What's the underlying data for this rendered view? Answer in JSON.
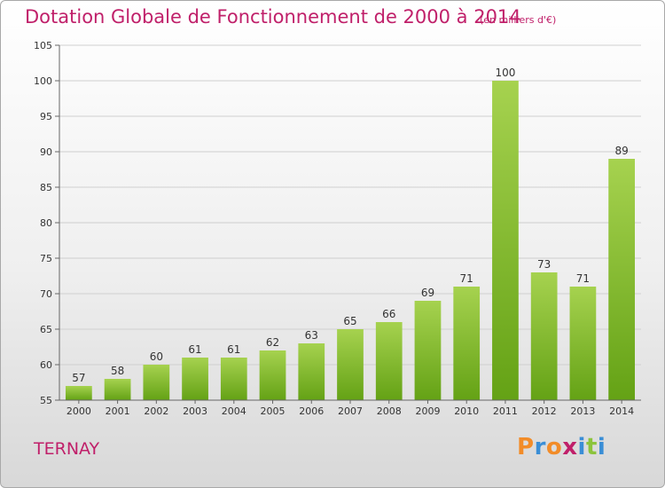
{
  "header": {
    "title": "Dotation Globale de Fonctionnement de 2000 à 2014",
    "unit": "(en milliers d'€)"
  },
  "footer": {
    "place": "TERNAY",
    "logo": "Proxiti"
  },
  "colors": {
    "title": "#c0206a",
    "bar_light": "#a6d24f",
    "bar_dark": "#64a215",
    "logo": [
      "#f28c28",
      "#3a8ed6",
      "#f28c28",
      "#c0206a",
      "#3a8ed6",
      "#8cc43c",
      "#3a8ed6"
    ]
  },
  "chart_data": {
    "type": "bar",
    "title": "Dotation Globale de Fonctionnement de 2000 à 2014",
    "subtitle": "(en milliers d'€)",
    "xlabel": "",
    "ylabel": "",
    "categories": [
      "2000",
      "2001",
      "2002",
      "2003",
      "2004",
      "2005",
      "2006",
      "2007",
      "2008",
      "2009",
      "2010",
      "2011",
      "2012",
      "2013",
      "2014"
    ],
    "values": [
      57,
      58,
      60,
      61,
      61,
      62,
      63,
      65,
      66,
      69,
      71,
      100,
      73,
      71,
      89
    ],
    "ylim": [
      55,
      105
    ],
    "yticks": [
      55,
      60,
      65,
      70,
      75,
      80,
      85,
      90,
      95,
      100,
      105
    ],
    "grid": true,
    "legend": "none"
  }
}
